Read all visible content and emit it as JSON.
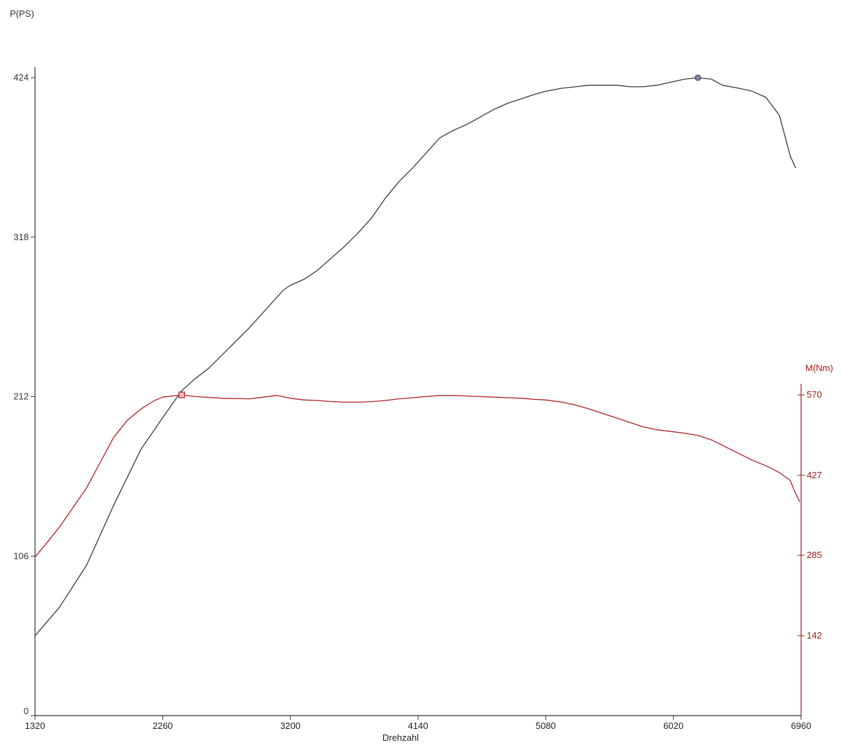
{
  "chart_data": {
    "type": "line",
    "xlabel": "Drehzahl",
    "ylabel_left": "P(PS)",
    "ylabel_right": "M(Nm)",
    "xlim": [
      1320,
      6960
    ],
    "ylim_left": [
      0,
      424
    ],
    "ylim_right": [
      0,
      570
    ],
    "x_ticks": [
      1320,
      2260,
      3200,
      4140,
      5080,
      6020,
      6960
    ],
    "y_ticks_left": [
      0,
      106,
      212,
      318,
      424
    ],
    "y_ticks_right": [
      142,
      285,
      427,
      570
    ],
    "grid": false,
    "colors": {
      "power": "#3a3a3a",
      "torque": "#b02020",
      "axis_left": "#333333",
      "axis_right": "#a01818"
    },
    "series": [
      {
        "key": "power",
        "axis": "left",
        "marker_at_max": "circle",
        "points": [
          [
            1320,
            53
          ],
          [
            1500,
            72
          ],
          [
            1700,
            100
          ],
          [
            1900,
            140
          ],
          [
            2100,
            177
          ],
          [
            2260,
            198
          ],
          [
            2400,
            216
          ],
          [
            2500,
            224
          ],
          [
            2600,
            231
          ],
          [
            2700,
            240
          ],
          [
            2800,
            249
          ],
          [
            2900,
            258
          ],
          [
            3000,
            268
          ],
          [
            3100,
            278
          ],
          [
            3150,
            283
          ],
          [
            3200,
            286
          ],
          [
            3300,
            290
          ],
          [
            3400,
            296
          ],
          [
            3500,
            304
          ],
          [
            3600,
            312
          ],
          [
            3700,
            321
          ],
          [
            3800,
            331
          ],
          [
            3900,
            344
          ],
          [
            4000,
            355
          ],
          [
            4100,
            364
          ],
          [
            4200,
            374
          ],
          [
            4300,
            384
          ],
          [
            4400,
            389
          ],
          [
            4500,
            393
          ],
          [
            4600,
            398
          ],
          [
            4700,
            403
          ],
          [
            4800,
            407
          ],
          [
            4900,
            410
          ],
          [
            5000,
            413
          ],
          [
            5080,
            415
          ],
          [
            5200,
            417
          ],
          [
            5300,
            418
          ],
          [
            5400,
            419
          ],
          [
            5500,
            419
          ],
          [
            5600,
            419
          ],
          [
            5700,
            418
          ],
          [
            5800,
            418
          ],
          [
            5900,
            419
          ],
          [
            6000,
            421
          ],
          [
            6100,
            423
          ],
          [
            6200,
            424
          ],
          [
            6300,
            423
          ],
          [
            6380,
            419
          ],
          [
            6500,
            417
          ],
          [
            6600,
            415
          ],
          [
            6700,
            411
          ],
          [
            6800,
            399
          ],
          [
            6880,
            372
          ],
          [
            6920,
            364
          ]
        ]
      },
      {
        "key": "torque",
        "axis": "right",
        "marker_at_max": "square",
        "points": [
          [
            1320,
            282
          ],
          [
            1400,
            305
          ],
          [
            1500,
            335
          ],
          [
            1600,
            370
          ],
          [
            1700,
            405
          ],
          [
            1800,
            450
          ],
          [
            1900,
            495
          ],
          [
            2000,
            525
          ],
          [
            2100,
            545
          ],
          [
            2200,
            560
          ],
          [
            2260,
            566
          ],
          [
            2400,
            570
          ],
          [
            2500,
            567
          ],
          [
            2700,
            564
          ],
          [
            2900,
            563
          ],
          [
            3000,
            566
          ],
          [
            3100,
            569
          ],
          [
            3200,
            564
          ],
          [
            3300,
            561
          ],
          [
            3400,
            560
          ],
          [
            3500,
            558
          ],
          [
            3600,
            557
          ],
          [
            3700,
            557
          ],
          [
            3800,
            558
          ],
          [
            3900,
            560
          ],
          [
            4000,
            563
          ],
          [
            4100,
            565
          ],
          [
            4200,
            567
          ],
          [
            4300,
            569
          ],
          [
            4400,
            569
          ],
          [
            4500,
            568
          ],
          [
            4600,
            567
          ],
          [
            4700,
            566
          ],
          [
            4800,
            565
          ],
          [
            4900,
            564
          ],
          [
            5000,
            562
          ],
          [
            5080,
            561
          ],
          [
            5200,
            557
          ],
          [
            5300,
            552
          ],
          [
            5400,
            545
          ],
          [
            5500,
            537
          ],
          [
            5600,
            529
          ],
          [
            5700,
            521
          ],
          [
            5800,
            513
          ],
          [
            5900,
            508
          ],
          [
            6000,
            505
          ],
          [
            6100,
            502
          ],
          [
            6200,
            498
          ],
          [
            6300,
            490
          ],
          [
            6400,
            478
          ],
          [
            6500,
            466
          ],
          [
            6600,
            454
          ],
          [
            6700,
            444
          ],
          [
            6800,
            432
          ],
          [
            6880,
            418
          ],
          [
            6910,
            400
          ],
          [
            6950,
            380
          ]
        ]
      }
    ]
  }
}
